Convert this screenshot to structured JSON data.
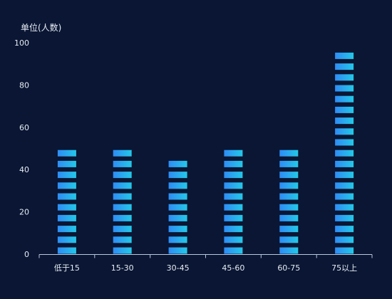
{
  "colors": {
    "background": "#0a1633",
    "axis": "#b9c7dd",
    "text": "#e6ecf5",
    "bar_start": "#2f8cf5",
    "bar_end": "#23c8e8"
  },
  "chart_data": {
    "type": "bar",
    "ylabel": "单位(人数)",
    "categories": [
      "低于15",
      "15-30",
      "30-45",
      "45-60",
      "60-75",
      "75以上"
    ],
    "values": [
      49,
      49,
      44,
      49,
      49,
      95
    ],
    "yticks": [
      "0",
      "20",
      "40",
      "60",
      "80",
      "100"
    ],
    "ylim": [
      0,
      100
    ],
    "grid": false,
    "style": "segmented-bar"
  }
}
